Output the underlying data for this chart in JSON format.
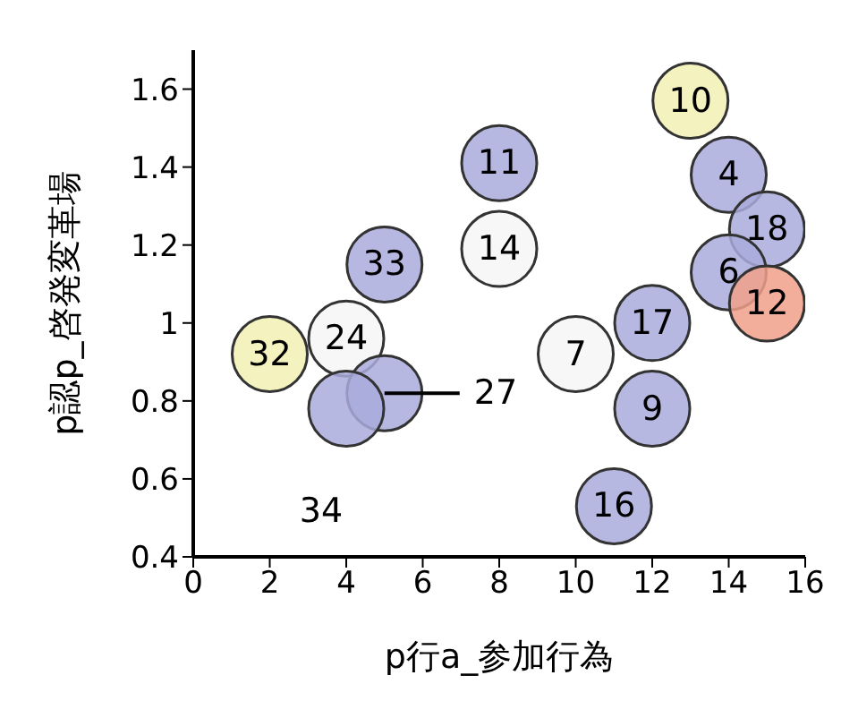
{
  "chart_data": {
    "type": "scatter",
    "xlabel": "p行a_参加行為",
    "ylabel": "p認p_啓発変革場",
    "x": [
      13,
      14,
      15,
      14,
      15,
      12,
      10,
      12,
      11,
      8,
      8,
      5,
      4,
      2,
      5,
      4
    ],
    "values": [
      1.57,
      1.38,
      1.24,
      1.13,
      1.05,
      1.0,
      0.92,
      0.78,
      0.53,
      1.41,
      1.19,
      1.15,
      0.96,
      0.92,
      0.82,
      0.78
    ],
    "colors": [
      "#f2f0b4",
      "#a9acdc",
      "#a9acdc",
      "#a9acdc",
      "#f0a089",
      "#a9acdc",
      "#f6f6f6",
      "#a9acdc",
      "#a9acdc",
      "#a9acdc",
      "#f6f6f6",
      "#a9acdc",
      "#f6f6f6",
      "#f2f0b4",
      "#a9acdc",
      "#a9acdc"
    ],
    "marker": "circle",
    "annotations": [
      {
        "text": "10",
        "x": 13,
        "y": 1.57
      },
      {
        "text": "4",
        "x": 14,
        "y": 1.38
      },
      {
        "text": "18",
        "x": 15,
        "y": 1.24
      },
      {
        "text": "6",
        "x": 14,
        "y": 1.13
      },
      {
        "text": "12",
        "x": 15,
        "y": 1.05
      },
      {
        "text": "17",
        "x": 12,
        "y": 1.0
      },
      {
        "text": "7",
        "x": 10,
        "y": 0.92
      },
      {
        "text": "9",
        "x": 12,
        "y": 0.78
      },
      {
        "text": "16",
        "x": 11,
        "y": 0.53
      },
      {
        "text": "11",
        "x": 8,
        "y": 1.41
      },
      {
        "text": "14",
        "x": 8,
        "y": 1.19
      },
      {
        "text": "33",
        "x": 5,
        "y": 1.15
      },
      {
        "text": "24",
        "x": 4,
        "y": 0.96
      },
      {
        "text": "32",
        "x": 2,
        "y": 0.92
      },
      {
        "text": "27",
        "x": 5,
        "y": 0.82
      },
      {
        "text": "34",
        "x": 4,
        "y": 0.78
      }
    ],
    "xlim": [
      0,
      16
    ],
    "xticks": [
      0,
      2,
      4,
      6,
      8,
      10,
      12,
      14,
      16
    ],
    "ylim": [
      0.4,
      1.7
    ],
    "yticks": [
      0.4,
      0.6,
      0.8,
      1,
      1.2,
      1.4,
      1.6
    ],
    "grid": false,
    "legend": false
  }
}
